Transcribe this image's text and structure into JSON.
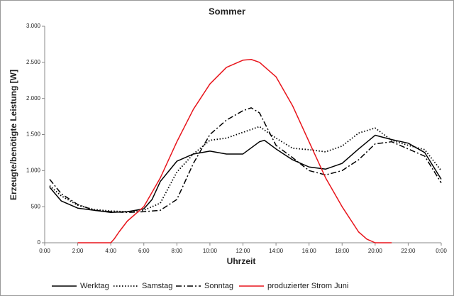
{
  "chart_data": {
    "type": "line",
    "title": "Sommer",
    "x_label": "Uhrzeit",
    "y_label": "Erzeugte/benötigte Leistung [W]",
    "xlim": [
      0,
      24
    ],
    "xticks": [
      {
        "value": 0,
        "label": "0:00"
      },
      {
        "value": 2,
        "label": "2:00"
      },
      {
        "value": 4,
        "label": "4:00"
      },
      {
        "value": 6,
        "label": "6:00"
      },
      {
        "value": 8,
        "label": "8:00"
      },
      {
        "value": 10,
        "label": "10:00"
      },
      {
        "value": 12,
        "label": "12:00"
      },
      {
        "value": 14,
        "label": "14:00"
      },
      {
        "value": 16,
        "label": "16:00"
      },
      {
        "value": 18,
        "label": "18:00"
      },
      {
        "value": 20,
        "label": "20:00"
      },
      {
        "value": 22,
        "label": "22:00"
      },
      {
        "value": 24,
        "label": "0:00"
      }
    ],
    "ylim": [
      0,
      3000
    ],
    "yticks": [
      0,
      500,
      {
        "value": 1000,
        "label": "1.000"
      },
      {
        "value": 1500,
        "label": "1.500"
      },
      {
        "value": 2000,
        "label": "2.000"
      },
      {
        "value": 2500,
        "label": "2.500"
      },
      {
        "value": 3000,
        "label": "3.000"
      }
    ],
    "grid": false,
    "legend": "bottom",
    "series": [
      {
        "name": "Werktag",
        "color": "#000000",
        "dash": "solid",
        "x": [
          0.3,
          1,
          2,
          3,
          4,
          5,
          6,
          6.5,
          7,
          8,
          9,
          10,
          11,
          12,
          13,
          13.3,
          14,
          15,
          16,
          17,
          18,
          19,
          20,
          21,
          22,
          23,
          24
        ],
        "values": [
          770,
          580,
          480,
          450,
          420,
          430,
          470,
          600,
          850,
          1130,
          1230,
          1270,
          1230,
          1230,
          1400,
          1420,
          1300,
          1150,
          1050,
          1020,
          1100,
          1300,
          1490,
          1430,
          1380,
          1250,
          880
        ]
      },
      {
        "name": "Samstag",
        "color": "#000000",
        "dash": "dotted",
        "x": [
          0.3,
          1,
          2,
          3,
          4,
          5,
          6,
          7,
          8,
          9,
          10,
          11,
          12,
          13,
          14,
          15,
          16,
          17,
          18,
          19,
          20,
          21,
          22,
          23,
          24
        ],
        "values": [
          790,
          650,
          520,
          460,
          440,
          430,
          450,
          550,
          980,
          1230,
          1420,
          1450,
          1530,
          1610,
          1450,
          1310,
          1290,
          1260,
          1340,
          1520,
          1590,
          1420,
          1350,
          1290,
          1000
        ]
      },
      {
        "name": "Sonntag",
        "color": "#000000",
        "dash": "dashdot",
        "x": [
          0.3,
          1,
          2,
          3,
          4,
          5,
          6,
          7,
          8,
          9,
          10,
          11,
          12,
          12.5,
          13,
          14,
          15,
          16,
          17,
          18,
          19,
          20,
          21,
          22,
          23,
          24
        ],
        "values": [
          880,
          680,
          530,
          450,
          430,
          420,
          430,
          450,
          600,
          1100,
          1500,
          1700,
          1830,
          1870,
          1800,
          1350,
          1180,
          1000,
          940,
          1000,
          1150,
          1370,
          1400,
          1300,
          1200,
          830
        ]
      },
      {
        "name": "produzierter Strom Juni",
        "color": "#e8141b",
        "dash": "solid",
        "x": [
          2,
          4,
          4.2,
          4.5,
          5,
          6,
          7,
          8,
          9,
          10,
          11,
          12,
          12.5,
          13,
          14,
          15,
          16,
          17,
          18,
          19,
          19.5,
          20,
          21
        ],
        "values": [
          0,
          0,
          50,
          150,
          300,
          500,
          900,
          1400,
          1850,
          2200,
          2430,
          2530,
          2540,
          2500,
          2300,
          1900,
          1400,
          900,
          500,
          150,
          50,
          0,
          0
        ]
      }
    ]
  }
}
